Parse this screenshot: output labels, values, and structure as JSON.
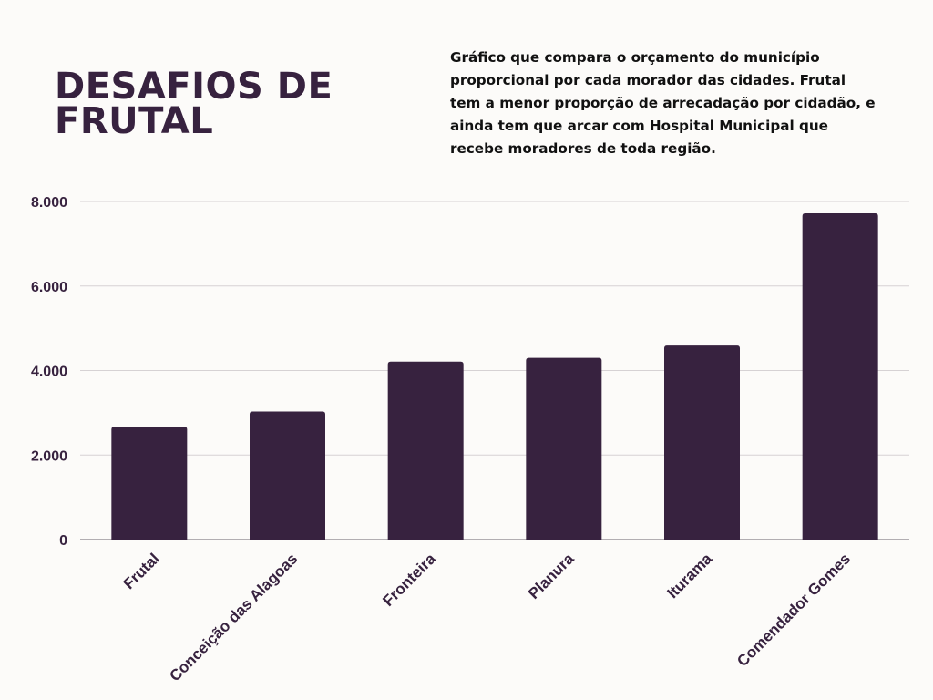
{
  "header": {
    "title": "DESAFIOS DE\nFRUTAL",
    "description": "Gráfico que compara o orçamento do município proporcional por cada morador das cidades. Frutal tem a menor proporção de arrecadação por cidadão, e ainda tem que arcar com Hospital Municipal que recebe moradores de toda região."
  },
  "colors": {
    "bar": "#37223f",
    "gridline": "#d6d2d4",
    "axis": "#9a949a",
    "text": "#37223f",
    "background": "#fcfbf9"
  },
  "chart_data": {
    "type": "bar",
    "title": "",
    "xlabel": "",
    "ylabel": "",
    "categories": [
      "Frutal",
      "Conceição das Alagoas",
      "Fronteira",
      "Planura",
      "Iturama",
      "Comendador Gomes"
    ],
    "values": [
      2670,
      3030,
      4210,
      4300,
      4590,
      7720
    ],
    "ylim": [
      0,
      8000
    ],
    "yticks": [
      0,
      2000,
      4000,
      6000,
      8000
    ],
    "ytick_labels": [
      "0",
      "2.000",
      "4.000",
      "6.000",
      "8.000"
    ],
    "grid": true,
    "legend": "none"
  }
}
